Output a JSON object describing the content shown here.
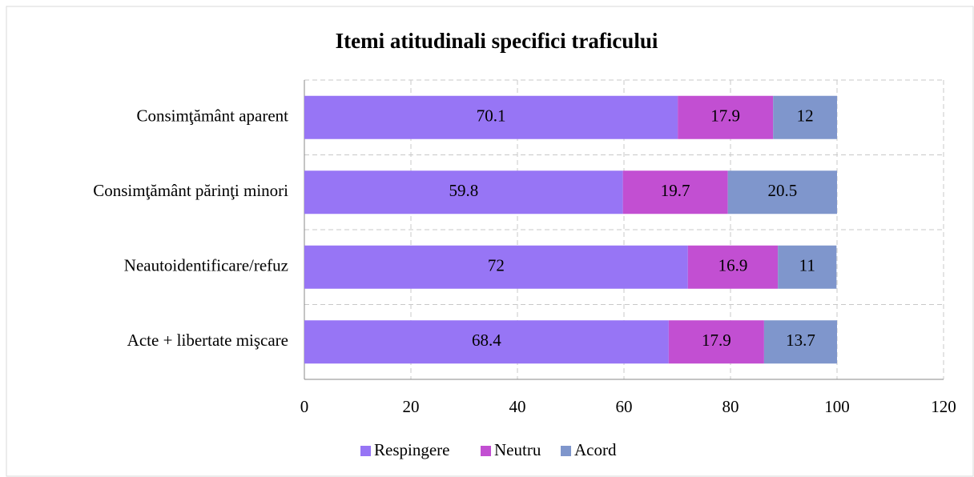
{
  "chart_data": {
    "type": "stacked_barh",
    "title": "Itemi atitudinali specifici traficului",
    "categories": [
      "Consimţământ aparent",
      "Consimţământ părinţi minori",
      "Neautoidentificare/refuz",
      "Acte + libertate mişcare"
    ],
    "series": [
      {
        "name": "Respingere",
        "color": "#9775f5",
        "values": [
          70.1,
          59.8,
          72,
          68.4
        ]
      },
      {
        "name": "Neutru",
        "color": "#c24fd2",
        "values": [
          17.9,
          19.7,
          16.9,
          17.9
        ]
      },
      {
        "name": "Acord",
        "color": "#7f96cc",
        "values": [
          12,
          20.5,
          11,
          13.7
        ]
      }
    ],
    "xlim": [
      0,
      120
    ],
    "xticks": [
      0,
      20,
      40,
      60,
      80,
      100,
      120
    ],
    "grid": true,
    "legend": "bottom"
  }
}
